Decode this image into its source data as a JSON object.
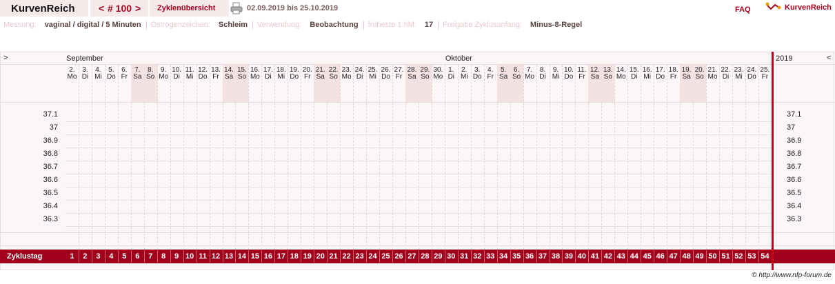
{
  "header": {
    "brand": "KurvenReich",
    "prev": "<",
    "cycle": "# 100",
    "next": ">",
    "overview": "Zyklenübersicht",
    "period": "02.09.2019 bis 25.10.2019",
    "faq": "FAQ",
    "logo": "KurvenReich"
  },
  "info": [
    {
      "label": "Messung:",
      "value": "vaginal / digital / 5 Minuten"
    },
    {
      "label": "Östrogenzeichen:",
      "value": "Schleim"
    },
    {
      "label": "Verwendung:",
      "value": "Beobachtung"
    },
    {
      "label": "früheste 1.hM:",
      "value": "17"
    },
    {
      "label": "Freigabe Zyklusanfang:",
      "value": "Minus-8-Regel"
    }
  ],
  "chart": {
    "scroll_left": ">",
    "scroll_right": "<",
    "year": "2019",
    "months": [
      "September",
      "Oktober"
    ],
    "dates": [
      "2.",
      "3.",
      "4.",
      "5.",
      "6.",
      "7.",
      "8.",
      "9.",
      "10.",
      "11.",
      "12.",
      "13.",
      "14.",
      "15.",
      "16.",
      "17.",
      "18.",
      "19.",
      "20.",
      "21.",
      "22.",
      "23.",
      "24.",
      "25.",
      "26.",
      "27.",
      "28.",
      "29.",
      "30.",
      "1.",
      "2.",
      "3.",
      "4.",
      "5.",
      "6.",
      "7.",
      "8.",
      "9.",
      "10.",
      "11.",
      "12.",
      "13.",
      "14.",
      "15.",
      "16.",
      "17.",
      "18.",
      "19.",
      "20.",
      "21.",
      "22.",
      "23.",
      "24.",
      "25."
    ],
    "weekdays": [
      "Mo",
      "Di",
      "Mi",
      "Do",
      "Fr",
      "Sa",
      "So",
      "Mo",
      "Di",
      "Mi",
      "Do",
      "Fr",
      "Sa",
      "So",
      "Mo",
      "Di",
      "Mi",
      "Do",
      "Fr",
      "Sa",
      "So",
      "Mo",
      "Di",
      "Mi",
      "Do",
      "Fr",
      "Sa",
      "So",
      "Mo",
      "Di",
      "Mi",
      "Do",
      "Fr",
      "Sa",
      "So",
      "Mo",
      "Di",
      "Mi",
      "Do",
      "Fr",
      "Sa",
      "So",
      "Mo",
      "Di",
      "Mi",
      "Do",
      "Fr",
      "Sa",
      "So",
      "Mo",
      "Di",
      "Mi",
      "Do",
      "Fr"
    ],
    "temperatures": [
      37.1,
      37,
      36.9,
      36.8,
      36.7,
      36.6,
      36.5,
      36.4,
      36.3
    ],
    "cycle_day_label": "Zyklustag",
    "cycle_days": [
      1,
      2,
      3,
      4,
      5,
      6,
      7,
      8,
      9,
      10,
      11,
      12,
      13,
      14,
      15,
      16,
      17,
      18,
      19,
      20,
      21,
      22,
      23,
      24,
      25,
      26,
      27,
      28,
      29,
      30,
      31,
      32,
      33,
      34,
      35,
      36,
      37,
      38,
      39,
      40,
      41,
      42,
      43,
      44,
      45,
      46,
      47,
      48,
      49,
      50,
      51,
      52,
      53,
      54
    ]
  },
  "footer": "© http://www.nfp-forum.de"
}
